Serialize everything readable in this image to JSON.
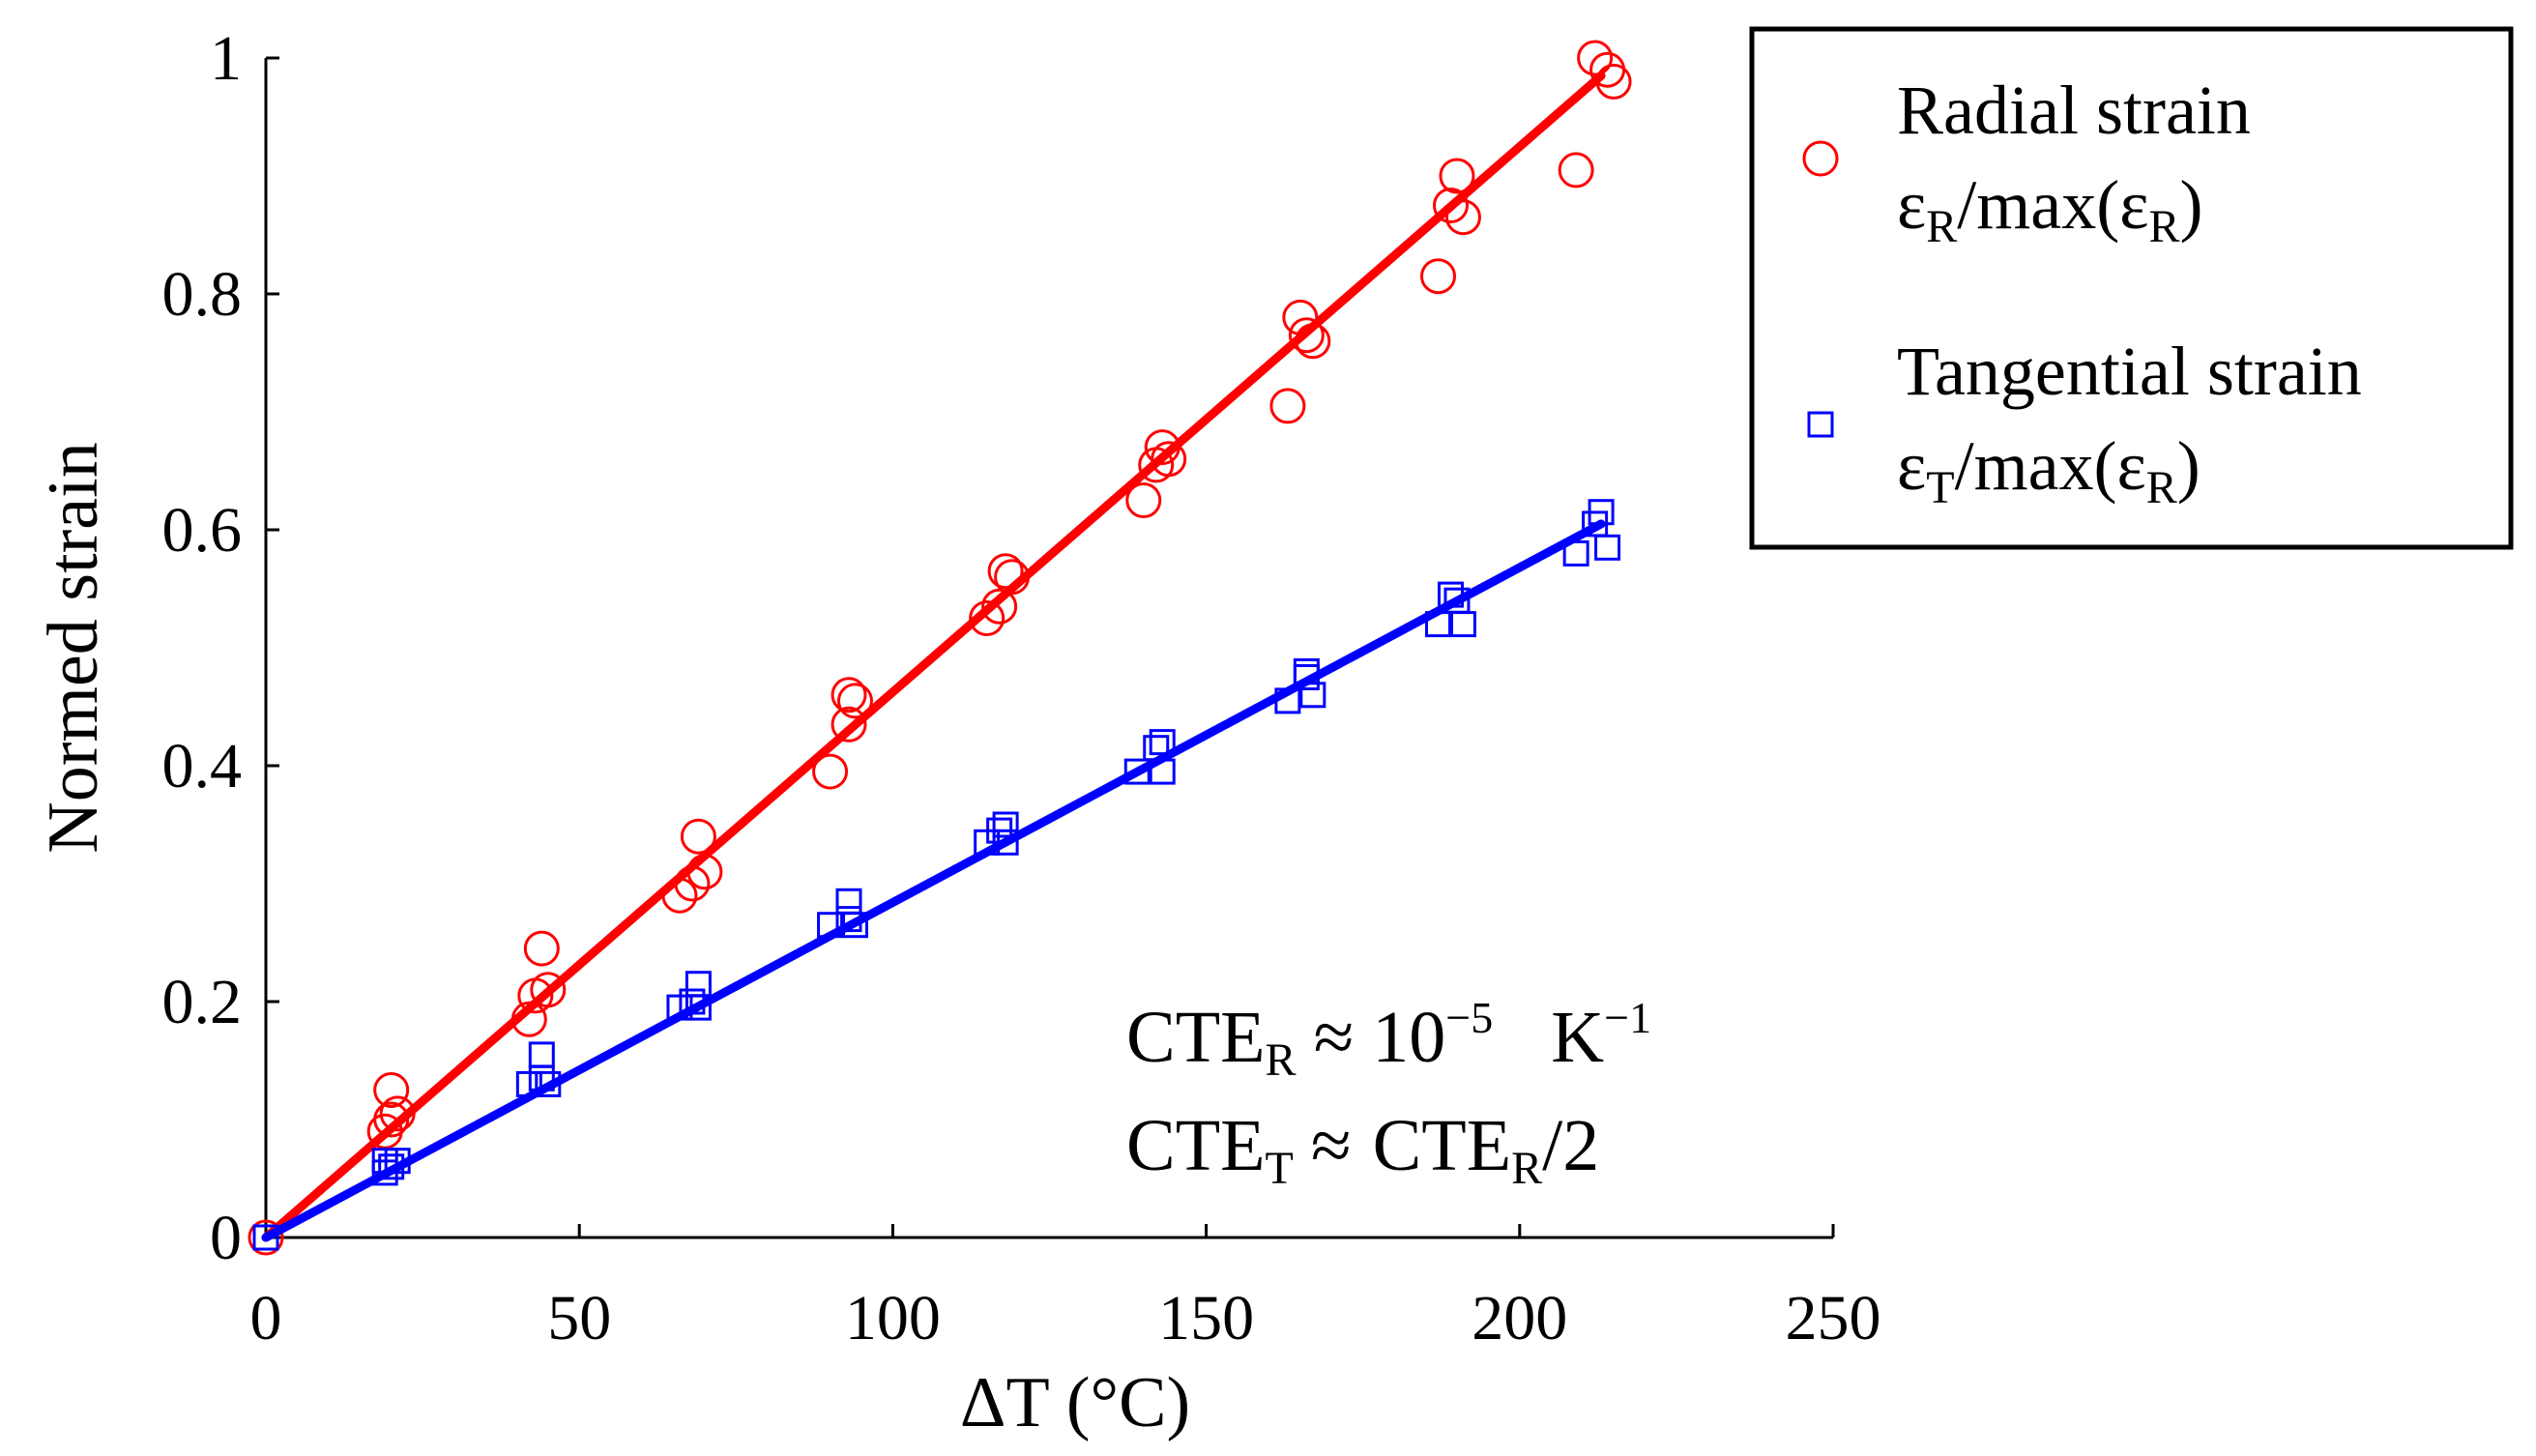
{
  "chart_data": {
    "type": "scatter",
    "xlabel": "ΔT (°C)",
    "ylabel": "Normed strain",
    "xlim": [
      0,
      250
    ],
    "ylim": [
      0,
      1
    ],
    "xticks": [
      "0",
      "50",
      "100",
      "150",
      "200",
      "250"
    ],
    "yticks": [
      "0",
      "0.2",
      "0.4",
      "0.6",
      "0.8",
      "1"
    ],
    "grid": false,
    "legend_position": "top-right",
    "colors": {
      "radial": "#ff0000",
      "tangential": "#0000ff",
      "axis": "#000000"
    },
    "series": [
      {
        "id": "radial",
        "name": "Radial strain",
        "formula": {
          "symbol": "ε",
          "sub": "R",
          "rest": "/max(ε",
          "sub2": "R",
          "close": ")"
        },
        "marker": "circle",
        "fit": {
          "x": [
            0,
            213
          ],
          "y": [
            0,
            0.985
          ]
        },
        "points": [
          [
            0,
            0
          ],
          [
            19,
            0.09
          ],
          [
            20,
            0.1
          ],
          [
            20,
            0.125
          ],
          [
            21,
            0.105
          ],
          [
            42,
            0.185
          ],
          [
            43,
            0.205
          ],
          [
            44,
            0.245
          ],
          [
            45,
            0.21
          ],
          [
            66,
            0.29
          ],
          [
            68,
            0.3
          ],
          [
            69,
            0.34
          ],
          [
            70,
            0.31
          ],
          [
            90,
            0.395
          ],
          [
            93,
            0.435
          ],
          [
            93,
            0.46
          ],
          [
            94,
            0.455
          ],
          [
            115,
            0.525
          ],
          [
            117,
            0.535
          ],
          [
            118,
            0.565
          ],
          [
            119,
            0.56
          ],
          [
            140,
            0.625
          ],
          [
            142,
            0.655
          ],
          [
            143,
            0.67
          ],
          [
            144,
            0.66
          ],
          [
            163,
            0.705
          ],
          [
            165,
            0.78
          ],
          [
            166,
            0.765
          ],
          [
            167,
            0.76
          ],
          [
            187,
            0.815
          ],
          [
            189,
            0.875
          ],
          [
            190,
            0.9
          ],
          [
            191,
            0.865
          ],
          [
            209,
            0.905
          ],
          [
            212,
            1.0
          ],
          [
            214,
            0.99
          ],
          [
            215,
            0.98
          ]
        ]
      },
      {
        "id": "tangential",
        "name": "Tangential strain",
        "formula": {
          "symbol": "ε",
          "sub": "T",
          "rest": "/max(ε",
          "sub2": "R",
          "close": ")"
        },
        "marker": "square",
        "fit": {
          "x": [
            0,
            213
          ],
          "y": [
            0,
            0.605
          ]
        },
        "points": [
          [
            0,
            0
          ],
          [
            19,
            0.055
          ],
          [
            19,
            0.065
          ],
          [
            20,
            0.06
          ],
          [
            21,
            0.065
          ],
          [
            42,
            0.13
          ],
          [
            44,
            0.135
          ],
          [
            44,
            0.155
          ],
          [
            45,
            0.13
          ],
          [
            66,
            0.195
          ],
          [
            68,
            0.2
          ],
          [
            69,
            0.215
          ],
          [
            69,
            0.195
          ],
          [
            90,
            0.265
          ],
          [
            93,
            0.285
          ],
          [
            93,
            0.27
          ],
          [
            94,
            0.265
          ],
          [
            115,
            0.335
          ],
          [
            117,
            0.345
          ],
          [
            118,
            0.35
          ],
          [
            118,
            0.335
          ],
          [
            139,
            0.395
          ],
          [
            142,
            0.415
          ],
          [
            143,
            0.42
          ],
          [
            143,
            0.395
          ],
          [
            163,
            0.455
          ],
          [
            166,
            0.475
          ],
          [
            166,
            0.48
          ],
          [
            167,
            0.46
          ],
          [
            187,
            0.52
          ],
          [
            189,
            0.545
          ],
          [
            190,
            0.54
          ],
          [
            191,
            0.52
          ],
          [
            209,
            0.58
          ],
          [
            212,
            0.605
          ],
          [
            213,
            0.615
          ],
          [
            214,
            0.585
          ]
        ]
      }
    ],
    "annotation": {
      "line1": {
        "base": "CTE",
        "sub": "R",
        "op": "≈ 10",
        "sup": "−5",
        "unit": "K",
        "unit_sup": "−1"
      },
      "line2": {
        "base": "CTE",
        "sub": "T",
        "op": "≈",
        "rhs_base": "CTE",
        "rhs_sub": "R",
        "rhs_rest": "/2"
      }
    }
  }
}
